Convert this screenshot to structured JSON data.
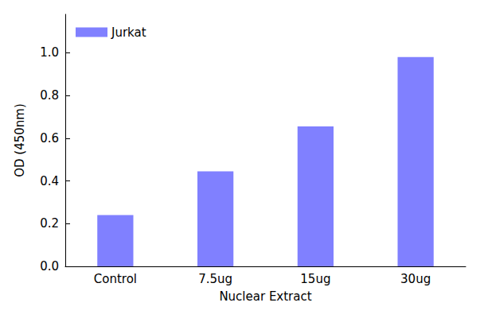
{
  "chart_data": {
    "type": "bar",
    "x_label": "Nuclear Extract",
    "y_label": "OD (450nm)",
    "categories": [
      "Control",
      "7.5ug",
      "15ug",
      "30ug"
    ],
    "series": [
      {
        "name": "Jurkat",
        "color": "#8080ff",
        "values": [
          0.24,
          0.445,
          0.655,
          0.98
        ]
      }
    ],
    "ylim": [
      0,
      1.18
    ],
    "yticks": [
      {
        "value": 0,
        "label": "0.0"
      },
      {
        "value": 0.2,
        "label": "0.2"
      },
      {
        "value": 0.4,
        "label": "0.4"
      },
      {
        "value": 0.6,
        "label": "0.6"
      },
      {
        "value": 0.8,
        "label": "0.8"
      },
      {
        "value": 1.0,
        "label": "1.0"
      }
    ],
    "grid": false,
    "legend": "upper left"
  }
}
